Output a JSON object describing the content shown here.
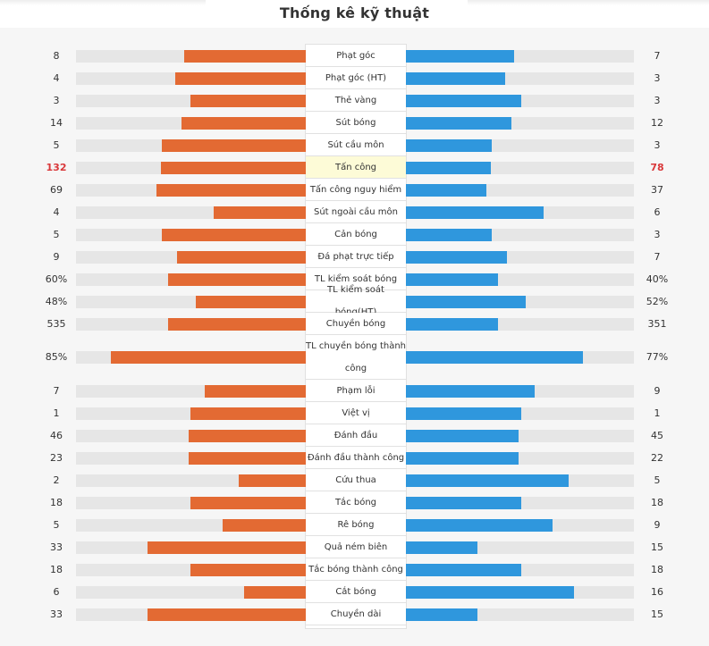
{
  "title": "Thống kê kỹ thuật",
  "colors": {
    "home": "#e36a33",
    "away": "#2f97dd",
    "highlight_text": "#d9383a",
    "highlight_bg": "#fdfbd7"
  },
  "stats": [
    {
      "label": "Phạt góc",
      "home": "8",
      "away": "7",
      "home_frac": 0.53,
      "away_frac": 0.47
    },
    {
      "label": "Phạt góc (HT)",
      "home": "4",
      "away": "3",
      "home_frac": 0.57,
      "away_frac": 0.43
    },
    {
      "label": "Thẻ vàng",
      "home": "3",
      "away": "3",
      "home_frac": 0.5,
      "away_frac": 0.5
    },
    {
      "label": "Sút bóng",
      "home": "14",
      "away": "12",
      "home_frac": 0.54,
      "away_frac": 0.46
    },
    {
      "label": "Sút cầu môn",
      "home": "5",
      "away": "3",
      "home_frac": 0.625,
      "away_frac": 0.375
    },
    {
      "label": "Tấn công",
      "home": "132",
      "away": "78",
      "home_frac": 0.63,
      "away_frac": 0.37,
      "highlight": true
    },
    {
      "label": "Tấn công nguy hiểm",
      "home": "69",
      "away": "37",
      "home_frac": 0.65,
      "away_frac": 0.35
    },
    {
      "label": "Sút ngoài cầu môn",
      "home": "4",
      "away": "6",
      "home_frac": 0.4,
      "away_frac": 0.6
    },
    {
      "label": "Cản bóng",
      "home": "5",
      "away": "3",
      "home_frac": 0.625,
      "away_frac": 0.375
    },
    {
      "label": "Đá phạt trực tiếp",
      "home": "9",
      "away": "7",
      "home_frac": 0.56,
      "away_frac": 0.44
    },
    {
      "label": "TL kiểm soát bóng",
      "home": "60%",
      "away": "40%",
      "home_frac": 0.6,
      "away_frac": 0.4
    },
    {
      "label": "TL kiểm soát bóng(HT)",
      "home": "48%",
      "away": "52%",
      "home_frac": 0.48,
      "away_frac": 0.52
    },
    {
      "label": "Chuyền bóng",
      "home": "535",
      "away": "351",
      "home_frac": 0.6,
      "away_frac": 0.4
    },
    {
      "label_lines": [
        "TL chuyền bóng thành",
        "công"
      ],
      "home": "85%",
      "away": "77%",
      "home_frac": 0.85,
      "away_frac": 0.77,
      "tall": true
    },
    {
      "label": "Phạm lỗi",
      "home": "7",
      "away": "9",
      "home_frac": 0.44,
      "away_frac": 0.56
    },
    {
      "label": "Việt vị",
      "home": "1",
      "away": "1",
      "home_frac": 0.5,
      "away_frac": 0.5
    },
    {
      "label": "Đánh đầu",
      "home": "46",
      "away": "45",
      "home_frac": 0.51,
      "away_frac": 0.49
    },
    {
      "label": "Đánh đầu thành công",
      "home": "23",
      "away": "22",
      "home_frac": 0.51,
      "away_frac": 0.49
    },
    {
      "label": "Cứu thua",
      "home": "2",
      "away": "5",
      "home_frac": 0.29,
      "away_frac": 0.71
    },
    {
      "label": "Tắc bóng",
      "home": "18",
      "away": "18",
      "home_frac": 0.5,
      "away_frac": 0.5
    },
    {
      "label": "Rê bóng",
      "home": "5",
      "away": "9",
      "home_frac": 0.36,
      "away_frac": 0.64
    },
    {
      "label": "Quả ném biên",
      "home": "33",
      "away": "15",
      "home_frac": 0.69,
      "away_frac": 0.31
    },
    {
      "label": "Tắc bóng thành công",
      "home": "18",
      "away": "18",
      "home_frac": 0.5,
      "away_frac": 0.5
    },
    {
      "label": "Cắt bóng",
      "home": "6",
      "away": "16",
      "home_frac": 0.27,
      "away_frac": 0.73
    },
    {
      "label": "Chuyền dài",
      "home": "33",
      "away": "15",
      "home_frac": 0.69,
      "away_frac": 0.31
    }
  ]
}
